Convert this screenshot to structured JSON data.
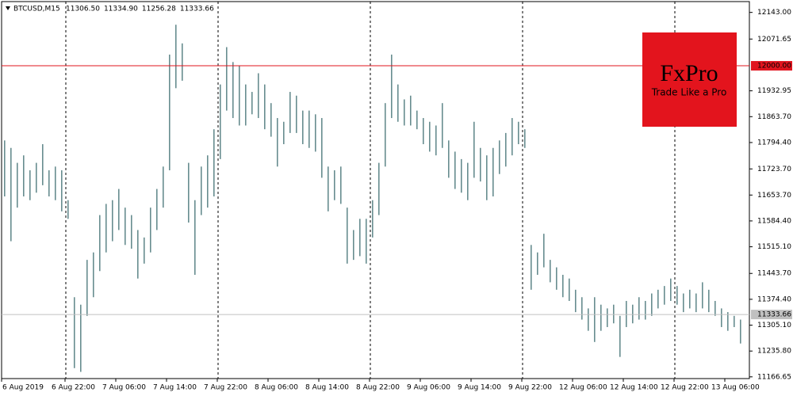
{
  "chart_data": {
    "type": "hl_bar",
    "title": "BTCUSD,M15",
    "header_values": [
      "11306.50",
      "11334.90",
      "11256.28",
      "11333.66"
    ],
    "color": "#678d8f",
    "ylim": [
      11162,
      12172
    ],
    "yticks": [
      {
        "value": 12143.0,
        "label": "12143.00"
      },
      {
        "value": 12071.65,
        "label": "12071.65"
      },
      {
        "value": 11932.95,
        "label": "11932.95"
      },
      {
        "value": 11863.7,
        "label": "11863.70"
      },
      {
        "value": 11794.4,
        "label": "11794.40"
      },
      {
        "value": 11723.7,
        "label": "11723.70"
      },
      {
        "value": 11653.7,
        "label": "11653.70"
      },
      {
        "value": 11584.4,
        "label": "11584.40"
      },
      {
        "value": 11515.1,
        "label": "11515.10"
      },
      {
        "value": 11443.7,
        "label": "11443.70"
      },
      {
        "value": 11374.4,
        "label": "11374.40"
      },
      {
        "value": 11305.1,
        "label": "11305.10"
      },
      {
        "value": 11235.8,
        "label": "11235.80"
      },
      {
        "value": 11166.65,
        "label": "11166.65"
      }
    ],
    "levels": [
      {
        "value": 12000,
        "label": "12000.00",
        "color": "#e0141e"
      },
      {
        "value": 11333.66,
        "label": "11333.66",
        "color": "#c0c0c0"
      }
    ],
    "logo": {
      "name": "FxPro",
      "tagline": "Trade Like a Pro",
      "color": "#e3141d"
    },
    "categories": [
      "6 Aug 2019",
      null,
      null,
      null,
      null,
      null,
      null,
      null,
      null,
      null,
      "6 Aug 22:00",
      null,
      null,
      null,
      null,
      null,
      null,
      null,
      "7 Aug 06:00",
      null,
      null,
      null,
      null,
      null,
      null,
      null,
      "7 Aug 14:00",
      null,
      null,
      null,
      null,
      null,
      null,
      null,
      "7 Aug 22:00",
      null,
      null,
      null,
      null,
      null,
      null,
      null,
      "8 Aug 06:00",
      null,
      null,
      null,
      null,
      null,
      null,
      null,
      "8 Aug 14:00",
      null,
      null,
      null,
      null,
      null,
      null,
      null,
      "8 Aug 22:00",
      null,
      null,
      null,
      null,
      null,
      null,
      null,
      "9 Aug 06:00",
      null,
      null,
      null,
      null,
      null,
      null,
      null,
      "9 Aug 14:00",
      null,
      null,
      null,
      null,
      null,
      null,
      null,
      "9 Aug 22:00",
      null,
      null,
      null,
      null,
      null,
      null,
      null,
      "12 Aug 06:00",
      null,
      null,
      null,
      null,
      null,
      null,
      null,
      "12 Aug 14:00",
      null,
      null,
      null,
      null,
      null,
      null,
      null,
      "12 Aug 22:00",
      null,
      null,
      null,
      null,
      null,
      null,
      null,
      "13 Aug 06:00",
      null,
      null
    ],
    "highs": [
      11800,
      11780,
      11740,
      11760,
      11720,
      11740,
      11790,
      11720,
      11730,
      11720,
      11640,
      11380,
      11360,
      11480,
      11500,
      11600,
      11630,
      11640,
      11670,
      11620,
      11600,
      11560,
      11540,
      11620,
      11670,
      11730,
      12030,
      12110,
      12060,
      11740,
      11640,
      11730,
      11760,
      11830,
      11950,
      12050,
      12010,
      12000,
      11950,
      11930,
      11980,
      11950,
      11900,
      11860,
      11850,
      11930,
      11920,
      11880,
      11880,
      11870,
      11860,
      11730,
      11720,
      11730,
      11620,
      11560,
      11590,
      11590,
      11640,
      11740,
      11900,
      12030,
      11950,
      11910,
      11920,
      11880,
      11860,
      11850,
      11840,
      11900,
      11800,
      11770,
      11750,
      11740,
      11850,
      11780,
      11760,
      11780,
      11800,
      11820,
      11860,
      11850,
      11830,
      11520,
      11500,
      11550,
      11480,
      11460,
      11440,
      11430,
      11400,
      11380,
      11350,
      11380,
      11360,
      11350,
      11360,
      11330,
      11370,
      11360,
      11380,
      11370,
      11390,
      11400,
      11410,
      11430,
      11410,
      11390,
      11400,
      11390,
      11420,
      11400,
      11370,
      11350,
      11340,
      11330,
      11320
    ],
    "lows": [
      11650,
      11530,
      11620,
      11650,
      11640,
      11660,
      11680,
      11650,
      11640,
      11610,
      11590,
      11190,
      11180,
      11330,
      11380,
      11450,
      11500,
      11530,
      11560,
      11520,
      11510,
      11430,
      11470,
      11500,
      11560,
      11620,
      11720,
      11940,
      11960,
      11580,
      11440,
      11600,
      11620,
      11650,
      11750,
      11880,
      11860,
      11840,
      11840,
      11870,
      11860,
      11830,
      11810,
      11730,
      11790,
      11820,
      11820,
      11790,
      11780,
      11770,
      11700,
      11610,
      11640,
      11630,
      11470,
      11480,
      11490,
      11470,
      11540,
      11600,
      11730,
      11860,
      11850,
      11840,
      11840,
      11830,
      11790,
      11770,
      11760,
      11780,
      11700,
      11670,
      11660,
      11640,
      11700,
      11690,
      11640,
      11650,
      11710,
      11730,
      11760,
      11790,
      11780,
      11400,
      11440,
      11460,
      11420,
      11400,
      11380,
      11370,
      11340,
      11320,
      11290,
      11260,
      11290,
      11300,
      11310,
      11220,
      11300,
      11310,
      11320,
      11320,
      11330,
      11350,
      11360,
      11370,
      11360,
      11340,
      11350,
      11340,
      11350,
      11340,
      11330,
      11300,
      11290,
      11300,
      11256
    ]
  }
}
